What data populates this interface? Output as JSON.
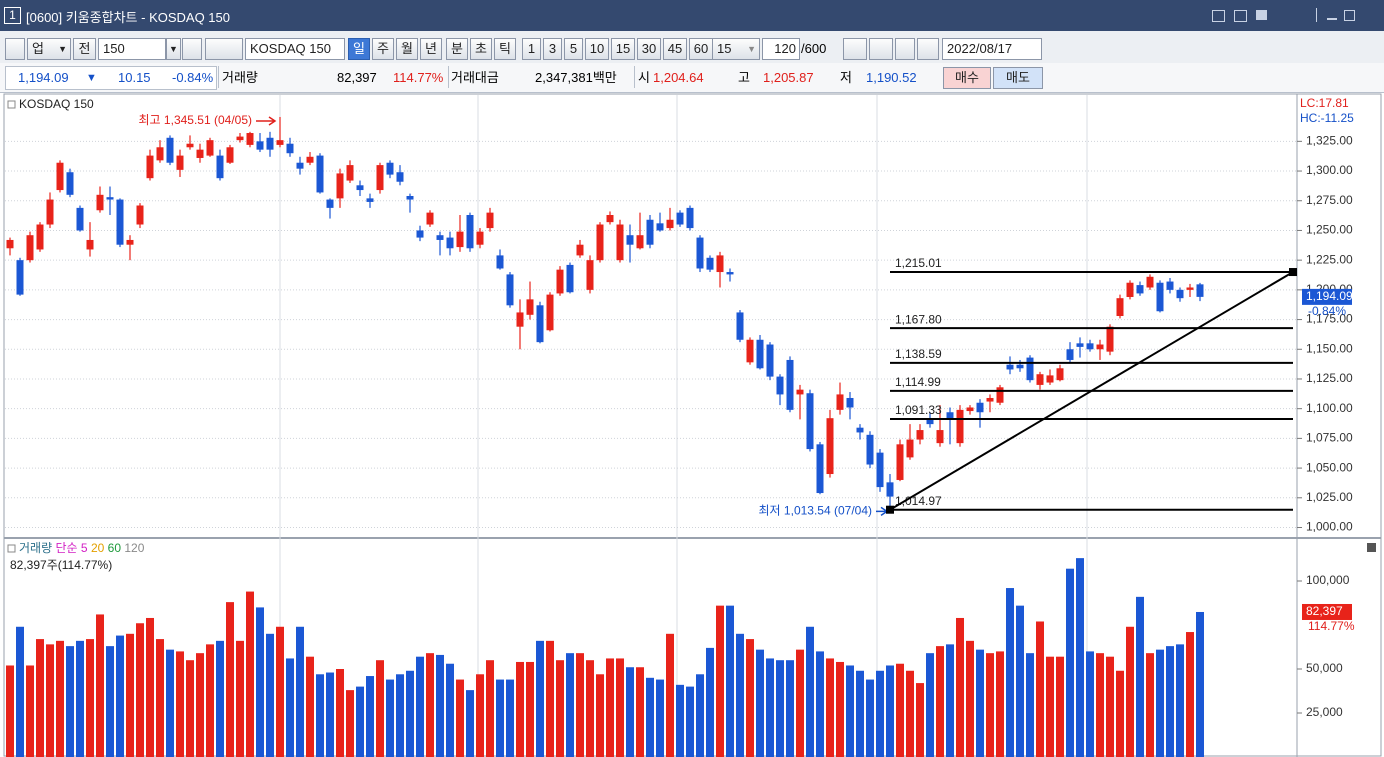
{
  "window": {
    "number": "1",
    "title": "[0600] 키움종합차트 - KOSDAQ 150"
  },
  "toolbar": {
    "market": "업",
    "scope": "전",
    "code": "150",
    "name": "KOSDAQ 150",
    "periods": [
      "일",
      "주",
      "월",
      "년",
      "분",
      "초",
      "틱"
    ],
    "selected_period": 0,
    "intervals": [
      "1",
      "3",
      "5",
      "10",
      "15",
      "30",
      "45",
      "60"
    ],
    "interval_select": "15",
    "count": "120",
    "max_count": "/600",
    "date": "2022/08/17"
  },
  "info": {
    "price": "1,194.09",
    "change": "10.15",
    "change_pct": "-0.84%",
    "volume_label": "거래량",
    "volume": "82,397",
    "volume_pct": "114.77%",
    "amount_label": "거래대금",
    "amount": "2,347,381백만",
    "open_label": "시",
    "open": "1,204.64",
    "high_label": "고",
    "high": "1,205.87",
    "low_label": "저",
    "low": "1,190.52",
    "buy": "매수",
    "sell": "매도"
  },
  "chart_data": [
    {
      "type": "candlestick",
      "name": "KOSDAQ 150",
      "up_color": "#e8231a",
      "down_color": "#1b57d4",
      "grid": true,
      "open": [
        1235,
        1225,
        1225,
        1234,
        1255,
        1284,
        1299,
        1269,
        1234,
        1267,
        1278,
        1276,
        1238,
        1255,
        1294,
        1309,
        1328,
        1301,
        1320,
        1311,
        1313,
        1313,
        1307,
        1326,
        1322,
        1325,
        1328,
        1322,
        1323,
        1307,
        1307,
        1313,
        1276,
        1277,
        1292,
        1288,
        1277,
        1284,
        1307,
        1299,
        1279,
        1250,
        1255,
        1246,
        1244,
        1236,
        1263,
        1238,
        1252,
        1229,
        1213,
        1169,
        1179,
        1187,
        1166,
        1197,
        1221,
        1229,
        1200,
        1225,
        1257,
        1225,
        1246,
        1235,
        1259,
        1256,
        1252,
        1265,
        1269,
        1244,
        1227,
        1215,
        1215,
        1181,
        1139,
        1158,
        1154,
        1127,
        1141,
        1112,
        1113,
        1070,
        1045,
        1099,
        1109,
        1084,
        1078,
        1063,
        1038,
        1040,
        1059,
        1074,
        1091,
        1071,
        1097,
        1071,
        1098,
        1105,
        1106,
        1105,
        1137,
        1137,
        1143,
        1120,
        1122,
        1124,
        1150,
        1155,
        1155,
        1150,
        1148,
        1178,
        1194,
        1204,
        1202,
        1206,
        1207,
        1200,
        1200,
        1204.64
      ],
      "high": [
        1244,
        1227,
        1249,
        1257,
        1282,
        1309,
        1302,
        1271,
        1257,
        1287,
        1287,
        1277,
        1246,
        1273,
        1318,
        1326,
        1330,
        1318,
        1330,
        1323,
        1328,
        1318,
        1322,
        1332,
        1333,
        1332,
        1333,
        1345.51,
        1328,
        1312,
        1316,
        1315,
        1277,
        1302,
        1309,
        1292,
        1281,
        1307,
        1309,
        1305,
        1281,
        1254,
        1267,
        1249,
        1249,
        1263,
        1265,
        1252,
        1269,
        1234,
        1215,
        1192,
        1207,
        1190,
        1198,
        1220,
        1223,
        1242,
        1229,
        1257,
        1266,
        1259,
        1255,
        1265,
        1263,
        1265,
        1269,
        1267,
        1271,
        1246,
        1229,
        1232,
        1218,
        1183,
        1160,
        1162,
        1156,
        1129,
        1144,
        1120,
        1116,
        1072,
        1099,
        1122,
        1114,
        1087,
        1081,
        1066,
        1045,
        1074,
        1087,
        1087,
        1097,
        1103,
        1101,
        1103,
        1103,
        1108,
        1112,
        1120,
        1144,
        1141,
        1145,
        1131,
        1133,
        1137,
        1156,
        1160,
        1158,
        1158,
        1171,
        1196,
        1208,
        1207,
        1213,
        1208,
        1210,
        1202,
        1205,
        1205.87
      ],
      "low": [
        1229,
        1195,
        1223,
        1232,
        1252,
        1282,
        1278,
        1249,
        1228,
        1265,
        1263,
        1236,
        1225,
        1252,
        1292,
        1307,
        1305,
        1295,
        1318,
        1307,
        1312,
        1292,
        1306,
        1324,
        1320,
        1316,
        1312,
        1320,
        1312,
        1297,
        1305,
        1281,
        1260,
        1269,
        1290,
        1279,
        1269,
        1281,
        1294,
        1288,
        1265,
        1241,
        1253,
        1229,
        1229,
        1232,
        1232,
        1235,
        1249,
        1217,
        1185,
        1150,
        1175,
        1155,
        1165,
        1195,
        1197,
        1227,
        1197,
        1223,
        1255,
        1223,
        1223,
        1234,
        1235,
        1249,
        1250,
        1253,
        1250,
        1215,
        1215,
        1202,
        1207,
        1156,
        1137,
        1133,
        1124,
        1103,
        1097,
        1091,
        1064,
        1028,
        1042,
        1095,
        1091,
        1074,
        1050,
        1030,
        1013.54,
        1039,
        1057,
        1070,
        1084,
        1068,
        1070,
        1068,
        1095,
        1084,
        1097,
        1103,
        1129,
        1131,
        1122,
        1116,
        1120,
        1123,
        1139,
        1143,
        1148,
        1141,
        1145,
        1176,
        1192,
        1195,
        1200,
        1181,
        1197,
        1190,
        1194,
        1190.52
      ],
      "close": [
        1242,
        1196,
        1246,
        1255,
        1276,
        1307,
        1280,
        1250,
        1242,
        1280,
        1276,
        1238,
        1242,
        1271,
        1313,
        1320,
        1307,
        1313,
        1323,
        1318,
        1326,
        1294,
        1320,
        1329,
        1332,
        1318,
        1318,
        1326,
        1315,
        1302,
        1312,
        1282,
        1269,
        1298,
        1305,
        1284,
        1274,
        1305,
        1297,
        1291,
        1276,
        1244,
        1265,
        1242,
        1235,
        1249,
        1235,
        1249,
        1265,
        1218,
        1187,
        1181,
        1192,
        1156,
        1196,
        1217,
        1198,
        1238,
        1225,
        1255,
        1263,
        1255,
        1238,
        1246,
        1238,
        1250,
        1259,
        1255,
        1252,
        1218,
        1217,
        1229,
        1213,
        1158,
        1158,
        1134,
        1127,
        1112,
        1099,
        1116,
        1066,
        1029,
        1092,
        1112,
        1101,
        1080,
        1053,
        1034,
        1026,
        1070,
        1074,
        1082,
        1087,
        1082,
        1091,
        1099,
        1101,
        1097,
        1109,
        1118,
        1133,
        1134,
        1124,
        1129,
        1128,
        1134,
        1141,
        1152,
        1150,
        1154,
        1169,
        1193,
        1206,
        1197,
        1211,
        1182,
        1200,
        1193,
        1202,
        1194.09
      ],
      "ylim": [
        992,
        1364
      ],
      "yticks": [
        {
          "value": 1000,
          "label": "1,000.00"
        },
        {
          "value": 1025,
          "label": "1,025.00"
        },
        {
          "value": 1050,
          "label": "1,050.00"
        },
        {
          "value": 1075,
          "label": "1,075.00"
        },
        {
          "value": 1100,
          "label": "1,100.00"
        },
        {
          "value": 1125,
          "label": "1,125.00"
        },
        {
          "value": 1150,
          "label": "1,150.00"
        },
        {
          "value": 1175,
          "label": "1,175.00"
        },
        {
          "value": 1200,
          "label": "1,200.00"
        },
        {
          "value": 1225,
          "label": "1,225.00"
        },
        {
          "value": 1250,
          "label": "1,250.00"
        },
        {
          "value": 1275,
          "label": "1,275.00"
        },
        {
          "value": 1300,
          "label": "1,300.00"
        },
        {
          "value": 1325,
          "label": "1,325.00"
        }
      ],
      "levels": [
        {
          "value": 1215.01,
          "label": "1,215.01"
        },
        {
          "value": 1167.8,
          "label": "1,167.80"
        },
        {
          "value": 1138.59,
          "label": "1,138.59"
        },
        {
          "value": 1114.99,
          "label": "1,114.99"
        },
        {
          "value": 1091.33,
          "label": "1,091.33"
        },
        {
          "value": 1014.97,
          "label": "1,014.97"
        }
      ],
      "high_annotation": {
        "value": 1345.51,
        "label": "최고 1,345.51 (04/05)"
      },
      "low_annotation": {
        "value": 1013.54,
        "label": "최저 1,013.54 (07/04)"
      },
      "lc_label": "LC:17.81",
      "hc_label": "HC:-11.25",
      "current_label": "1,194.09",
      "current_change": "-0.84%"
    },
    {
      "type": "bar",
      "name": "거래량",
      "ma_label": "단순",
      "ma_periods": [
        "5",
        "20",
        "60",
        "120"
      ],
      "ma_colors": [
        "#d21fc4",
        "#e3a000",
        "#1f9a3c",
        "#8a8a8a"
      ],
      "summary": "82,397주(114.77%)",
      "current_label": "82,397",
      "current_pct": "114.77%",
      "values": [
        52000,
        74000,
        52000,
        67000,
        64000,
        66000,
        63000,
        66000,
        67000,
        81000,
        63000,
        69000,
        70000,
        76000,
        79000,
        67000,
        61000,
        60000,
        55000,
        59000,
        64000,
        66000,
        88000,
        66000,
        94000,
        85000,
        70000,
        74000,
        56000,
        74000,
        57000,
        47000,
        48000,
        50000,
        38000,
        40000,
        46000,
        55000,
        44000,
        47000,
        49000,
        57000,
        59000,
        58000,
        53000,
        44000,
        38000,
        47000,
        55000,
        44000,
        44000,
        54000,
        54000,
        66000,
        66000,
        55000,
        59000,
        59000,
        55000,
        47000,
        56000,
        56000,
        51000,
        51000,
        45000,
        44000,
        70000,
        41000,
        40000,
        47000,
        62000,
        86000,
        86000,
        70000,
        67000,
        61000,
        56000,
        55000,
        55000,
        61000,
        74000,
        60000,
        56000,
        54000,
        52000,
        49000,
        44000,
        49000,
        52000,
        53000,
        49000,
        42000,
        59000,
        63000,
        64000,
        79000,
        66000,
        61000,
        59000,
        60000,
        96000,
        86000,
        59000,
        77000,
        57000,
        57000,
        107000,
        113000,
        60000,
        59000,
        57000,
        49000,
        74000,
        91000,
        59000,
        61000,
        63000,
        64000,
        71000,
        82397
      ],
      "ylim": [
        0,
        123300
      ],
      "yticks": [
        {
          "value": 25000,
          "label": "25,000"
        },
        {
          "value": 50000,
          "label": "50,000"
        },
        {
          "value": 100000,
          "label": "100,000"
        }
      ]
    }
  ]
}
